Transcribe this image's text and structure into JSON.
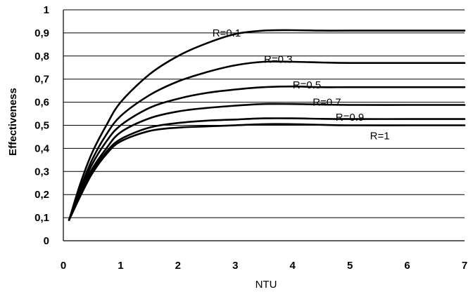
{
  "chart_data": {
    "type": "line",
    "title": "",
    "xlabel": "NTU",
    "ylabel": "Effectiveness",
    "xlim": [
      0,
      7
    ],
    "ylim": [
      0,
      1
    ],
    "x_ticks": [
      "0",
      "1",
      "2",
      "3",
      "4",
      "5",
      "6",
      "7"
    ],
    "y_ticks": [
      "0",
      "0,1",
      "0,2",
      "0,3",
      "0,4",
      "0,5",
      "0,6",
      "0,7",
      "0,8",
      "0,9",
      "1"
    ],
    "grid": "horizontal",
    "legend": "none",
    "series": [
      {
        "name": "R=0.1",
        "x": [
          0.1,
          0.3,
          0.5,
          0.75,
          1,
          1.5,
          2,
          2.5,
          3,
          3.5,
          4,
          4.5,
          5,
          6,
          7
        ],
        "y": [
          0.09,
          0.25,
          0.38,
          0.5,
          0.6,
          0.72,
          0.8,
          0.855,
          0.895,
          0.91,
          0.912,
          0.91,
          0.91,
          0.91,
          0.91
        ]
      },
      {
        "name": "R=0.3",
        "x": [
          0.1,
          0.3,
          0.5,
          0.75,
          1,
          1.5,
          2,
          2.5,
          3,
          3.5,
          4,
          4.5,
          5,
          6,
          7
        ],
        "y": [
          0.09,
          0.23,
          0.35,
          0.46,
          0.54,
          0.63,
          0.69,
          0.73,
          0.76,
          0.775,
          0.775,
          0.772,
          0.77,
          0.77,
          0.77
        ]
      },
      {
        "name": "R=0.5",
        "x": [
          0.1,
          0.3,
          0.5,
          0.75,
          1,
          1.5,
          2,
          2.5,
          3,
          3.5,
          4,
          4.5,
          5,
          6,
          7
        ],
        "y": [
          0.09,
          0.22,
          0.33,
          0.43,
          0.5,
          0.575,
          0.615,
          0.64,
          0.655,
          0.665,
          0.668,
          0.665,
          0.665,
          0.665,
          0.665
        ]
      },
      {
        "name": "R=0.7",
        "x": [
          0.1,
          0.3,
          0.5,
          0.75,
          1,
          1.5,
          2,
          2.5,
          3,
          3.5,
          4,
          4.5,
          5,
          6,
          7
        ],
        "y": [
          0.09,
          0.21,
          0.31,
          0.4,
          0.47,
          0.53,
          0.56,
          0.575,
          0.585,
          0.592,
          0.592,
          0.59,
          0.588,
          0.588,
          0.588
        ]
      },
      {
        "name": "R=0.9",
        "x": [
          0.1,
          0.3,
          0.5,
          0.75,
          1,
          1.5,
          2,
          2.5,
          3,
          3.5,
          4,
          4.5,
          5,
          6,
          7
        ],
        "y": [
          0.09,
          0.2,
          0.3,
          0.385,
          0.44,
          0.49,
          0.51,
          0.52,
          0.525,
          0.53,
          0.53,
          0.528,
          0.527,
          0.527,
          0.527
        ]
      },
      {
        "name": "R=1",
        "x": [
          0.1,
          0.3,
          0.5,
          0.75,
          1,
          1.5,
          2,
          2.5,
          3,
          3.5,
          4,
          4.5,
          5,
          6,
          7
        ],
        "y": [
          0.09,
          0.195,
          0.29,
          0.375,
          0.43,
          0.475,
          0.49,
          0.495,
          0.5,
          0.505,
          0.505,
          0.502,
          0.5,
          0.5,
          0.5
        ]
      }
    ],
    "annotations": [
      "R=0.1",
      "R=0.3",
      "R=0.5",
      "R=0.7",
      "R=0.9",
      "R=1"
    ]
  }
}
